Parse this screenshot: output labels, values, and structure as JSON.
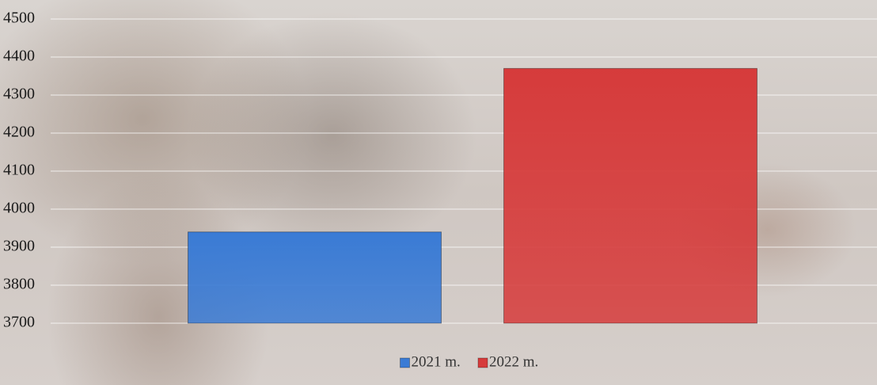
{
  "chart_data": {
    "type": "bar",
    "categories": [
      null
    ],
    "series": [
      {
        "name": "2021 m.",
        "color": "#3a7bd5",
        "values": [
          3940
        ]
      },
      {
        "name": "2022 m.",
        "color": "#d63b3b",
        "values": [
          4370
        ]
      }
    ],
    "ylim": [
      3700,
      4500
    ],
    "yticks": [
      3700,
      3800,
      3900,
      4000,
      4100,
      4200,
      4300,
      4400,
      4500
    ],
    "grid": true,
    "legend": "bottom"
  }
}
